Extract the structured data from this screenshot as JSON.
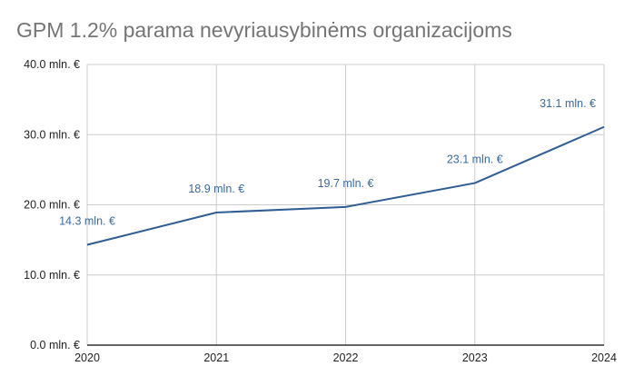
{
  "chart_data": {
    "type": "line",
    "title": "GPM 1.2% parama nevyriausybinėms organizacijoms",
    "xlabel": "",
    "ylabel": "",
    "x": [
      "2020",
      "2021",
      "2022",
      "2023",
      "2024"
    ],
    "series": [
      {
        "values": [
          14.3,
          18.9,
          19.7,
          23.1,
          31.1
        ],
        "labels": [
          "14.3 mln. €",
          "18.9 mln. €",
          "19.7 mln. €",
          "23.1 mln. €",
          "31.1 mln. €"
        ]
      }
    ],
    "ylim": [
      0,
      40
    ],
    "yticks": [
      {
        "value": 0,
        "label": "0.0 mln. €"
      },
      {
        "value": 10,
        "label": "10.0 mln. €"
      },
      {
        "value": 20,
        "label": "20.0 mln. €"
      },
      {
        "value": 30,
        "label": "30.0 mln. €"
      },
      {
        "value": 40,
        "label": "40.0 mln. €"
      }
    ],
    "grid": true,
    "legend": "none"
  },
  "colors": {
    "line": "#2f5d94",
    "label": "#3a6aa0",
    "grid": "#cccccc",
    "axis": "#333333",
    "title": "#757575"
  }
}
